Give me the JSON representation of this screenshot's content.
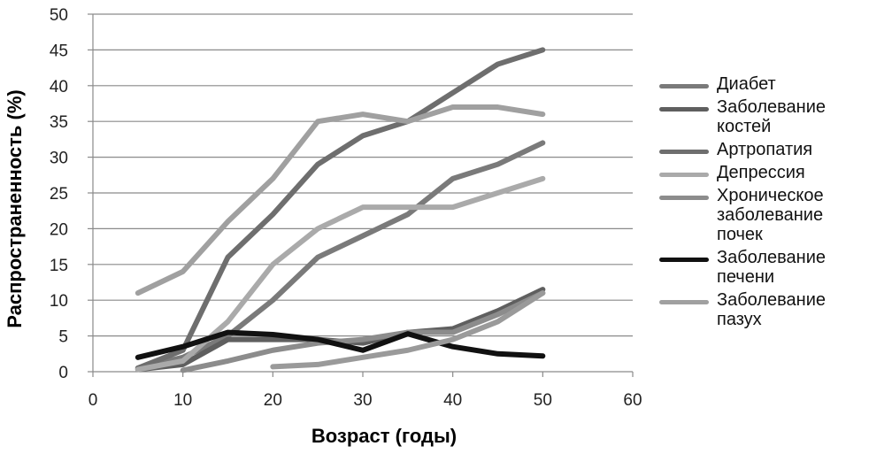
{
  "chart_data": {
    "type": "line",
    "xlabel": "Возраст (годы)",
    "ylabel": "Распространенность (%)",
    "xlim": [
      0,
      60
    ],
    "ylim": [
      0,
      50
    ],
    "xticks": [
      "0",
      "10",
      "20",
      "30",
      "40",
      "50",
      "60"
    ],
    "yticks": [
      "0",
      "5",
      "10",
      "15",
      "20",
      "25",
      "30",
      "35",
      "40",
      "45",
      "50"
    ],
    "grid": "horizontal",
    "legend_position": "right",
    "series": [
      {
        "name": "Диабет",
        "color": "#7a7a7a",
        "points": [
          [
            5,
            0.5
          ],
          [
            10,
            2
          ],
          [
            15,
            5
          ],
          [
            20,
            10
          ],
          [
            25,
            16
          ],
          [
            30,
            19
          ],
          [
            35,
            22
          ],
          [
            40,
            27
          ],
          [
            45,
            29
          ],
          [
            50,
            32
          ]
        ]
      },
      {
        "name": "Заболевание костей",
        "color": "#5f5f5f",
        "points": [
          [
            5,
            0.3
          ],
          [
            10,
            1
          ],
          [
            15,
            4.5
          ],
          [
            20,
            4.5
          ],
          [
            25,
            4.5
          ],
          [
            30,
            4
          ],
          [
            35,
            5.5
          ],
          [
            40,
            6
          ],
          [
            45,
            8.5
          ],
          [
            50,
            11.5
          ]
        ]
      },
      {
        "name": "Артропатия",
        "color": "#6e6e6e",
        "points": [
          [
            5,
            0.5
          ],
          [
            10,
            3
          ],
          [
            15,
            16
          ],
          [
            20,
            22
          ],
          [
            25,
            29
          ],
          [
            30,
            33
          ],
          [
            35,
            35
          ],
          [
            40,
            39
          ],
          [
            45,
            43
          ],
          [
            50,
            45
          ]
        ]
      },
      {
        "name": "Депрессия",
        "color": "#aaaaaa",
        "points": [
          [
            5,
            0.3
          ],
          [
            10,
            1.5
          ],
          [
            15,
            7
          ],
          [
            20,
            15
          ],
          [
            25,
            20
          ],
          [
            30,
            23
          ],
          [
            35,
            23
          ],
          [
            40,
            23
          ],
          [
            45,
            25
          ],
          [
            50,
            27
          ]
        ]
      },
      {
        "name": "Хроническое заболевание почек",
        "color": "#8c8c8c",
        "points": [
          [
            10,
            0.2
          ],
          [
            15,
            1.5
          ],
          [
            20,
            3
          ],
          [
            25,
            4
          ],
          [
            30,
            4.5
          ],
          [
            35,
            5.5
          ],
          [
            40,
            5.5
          ],
          [
            45,
            8
          ],
          [
            50,
            11
          ]
        ]
      },
      {
        "name": "Заболевание печени",
        "color": "#111111",
        "points": [
          [
            5,
            2
          ],
          [
            10,
            3.5
          ],
          [
            15,
            5.5
          ],
          [
            20,
            5.2
          ],
          [
            25,
            4.5
          ],
          [
            30,
            3
          ],
          [
            35,
            5.3
          ],
          [
            40,
            3.5
          ],
          [
            45,
            2.5
          ],
          [
            50,
            2.2
          ]
        ]
      },
      {
        "name": "Заболевание пазух",
        "color": "#a0a0a0",
        "points": [
          [
            5,
            11
          ],
          [
            10,
            14
          ],
          [
            15,
            21
          ],
          [
            20,
            27
          ],
          [
            25,
            35
          ],
          [
            30,
            36
          ],
          [
            35,
            35
          ],
          [
            40,
            37
          ],
          [
            45,
            37
          ],
          [
            50,
            36
          ]
        ]
      },
      {
        "name": "",
        "color": "#9a9a9a",
        "points": [
          [
            20,
            0.7
          ],
          [
            25,
            1
          ],
          [
            30,
            2
          ],
          [
            35,
            3
          ],
          [
            40,
            4.5
          ],
          [
            45,
            7
          ],
          [
            50,
            11
          ]
        ]
      }
    ]
  }
}
